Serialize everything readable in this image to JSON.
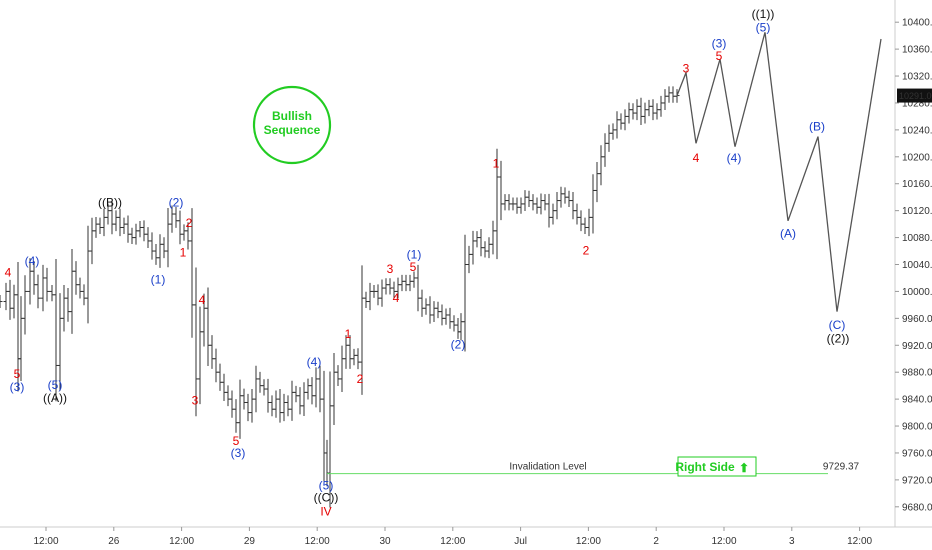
{
  "chart_data": {
    "type": "line",
    "title": "",
    "xlabel": "",
    "ylabel": "",
    "ylim": [
      9650,
      10430
    ],
    "y_ticks": [
      9680,
      9720,
      9760,
      9800,
      9840,
      9880,
      9920,
      9960,
      10000,
      10040,
      10080,
      10120,
      10160,
      10200,
      10240,
      10280,
      10320,
      10360,
      10400
    ],
    "x_ticks": [
      "12:00",
      "26",
      "12:00",
      "29",
      "12:00",
      "30",
      "12:00",
      "Jul",
      "12:00",
      "2",
      "12:00",
      "3",
      "12:00"
    ],
    "price_series": {
      "name": "price",
      "points": [
        [
          0,
          9985
        ],
        [
          6,
          10000
        ],
        [
          10,
          9975
        ],
        [
          14,
          9995
        ],
        [
          18,
          9900
        ],
        [
          21,
          9960
        ],
        [
          25,
          10000
        ],
        [
          30,
          10030
        ],
        [
          34,
          10010
        ],
        [
          38,
          9990
        ],
        [
          43,
          10020
        ],
        [
          47,
          10000
        ],
        [
          52,
          9995
        ],
        [
          56,
          9890
        ],
        [
          60,
          9960
        ],
        [
          64,
          9990
        ],
        [
          68,
          9970
        ],
        [
          72,
          10030
        ],
        [
          76,
          10010
        ],
        [
          80,
          10000
        ],
        [
          84,
          9990
        ],
        [
          88,
          10060
        ],
        [
          92,
          10090
        ],
        [
          96,
          10100
        ],
        [
          100,
          10095
        ],
        [
          104,
          10110
        ],
        [
          108,
          10120
        ],
        [
          112,
          10100
        ],
        [
          116,
          10110
        ],
        [
          120,
          10095
        ],
        [
          124,
          10100
        ],
        [
          128,
          10085
        ],
        [
          132,
          10080
        ],
        [
          136,
          10090
        ],
        [
          140,
          10095
        ],
        [
          144,
          10085
        ],
        [
          148,
          10075
        ],
        [
          152,
          10060
        ],
        [
          156,
          10050
        ],
        [
          160,
          10070
        ],
        [
          164,
          10060
        ],
        [
          168,
          10100
        ],
        [
          172,
          10115
        ],
        [
          176,
          10105
        ],
        [
          180,
          10085
        ],
        [
          184,
          10090
        ],
        [
          188,
          10075
        ],
        [
          192,
          9980
        ],
        [
          196,
          9870
        ],
        [
          200,
          9940
        ],
        [
          204,
          9975
        ],
        [
          208,
          9920
        ],
        [
          212,
          9900
        ],
        [
          216,
          9880
        ],
        [
          220,
          9865
        ],
        [
          224,
          9850
        ],
        [
          228,
          9840
        ],
        [
          232,
          9825
        ],
        [
          236,
          9805
        ],
        [
          240,
          9845
        ],
        [
          244,
          9835
        ],
        [
          248,
          9820
        ],
        [
          252,
          9840
        ],
        [
          256,
          9870
        ],
        [
          260,
          9860
        ],
        [
          264,
          9855
        ],
        [
          268,
          9835
        ],
        [
          272,
          9825
        ],
        [
          276,
          9840
        ],
        [
          280,
          9820
        ],
        [
          284,
          9835
        ],
        [
          288,
          9825
        ],
        [
          292,
          9850
        ],
        [
          296,
          9845
        ],
        [
          300,
          9830
        ],
        [
          304,
          9850
        ],
        [
          308,
          9860
        ],
        [
          312,
          9845
        ],
        [
          316,
          9870
        ],
        [
          320,
          9840
        ],
        [
          324,
          9760
        ],
        [
          327,
          9730
        ],
        [
          330,
          9830
        ],
        [
          334,
          9880
        ],
        [
          338,
          9870
        ],
        [
          342,
          9900
        ],
        [
          346,
          9920
        ],
        [
          350,
          9900
        ],
        [
          354,
          9905
        ],
        [
          358,
          9895
        ],
        [
          362,
          9990
        ],
        [
          366,
          9985
        ],
        [
          370,
          10000
        ],
        [
          374,
          10000
        ],
        [
          378,
          9990
        ],
        [
          382,
          10005
        ],
        [
          386,
          10010
        ],
        [
          390,
          10005
        ],
        [
          394,
          10000
        ],
        [
          398,
          10010
        ],
        [
          402,
          10015
        ],
        [
          406,
          10010
        ],
        [
          410,
          10015
        ],
        [
          414,
          10020
        ],
        [
          418,
          9990
        ],
        [
          422,
          9975
        ],
        [
          426,
          9980
        ],
        [
          430,
          9965
        ],
        [
          434,
          9975
        ],
        [
          438,
          9970
        ],
        [
          442,
          9960
        ],
        [
          446,
          9965
        ],
        [
          450,
          9955
        ],
        [
          454,
          9950
        ],
        [
          458,
          9940
        ],
        [
          461,
          9955
        ],
        [
          465,
          10040
        ],
        [
          469,
          10055
        ],
        [
          473,
          10075
        ],
        [
          477,
          10080
        ],
        [
          481,
          10065
        ],
        [
          485,
          10060
        ],
        [
          489,
          10070
        ],
        [
          493,
          10090
        ],
        [
          497,
          10170
        ],
        [
          501,
          10130
        ],
        [
          505,
          10135
        ],
        [
          509,
          10130
        ],
        [
          513,
          10130
        ],
        [
          517,
          10125
        ],
        [
          521,
          10130
        ],
        [
          525,
          10140
        ],
        [
          529,
          10135
        ],
        [
          533,
          10130
        ],
        [
          537,
          10125
        ],
        [
          541,
          10135
        ],
        [
          545,
          10130
        ],
        [
          549,
          10110
        ],
        [
          553,
          10120
        ],
        [
          557,
          10135
        ],
        [
          561,
          10145
        ],
        [
          565,
          10140
        ],
        [
          569,
          10135
        ],
        [
          573,
          10120
        ],
        [
          577,
          10110
        ],
        [
          581,
          10100
        ],
        [
          585,
          10095
        ],
        [
          589,
          10110
        ],
        [
          593,
          10150
        ],
        [
          597,
          10175
        ],
        [
          601,
          10200
        ],
        [
          605,
          10220
        ],
        [
          609,
          10235
        ],
        [
          613,
          10240
        ],
        [
          617,
          10255
        ],
        [
          621,
          10250
        ],
        [
          625,
          10260
        ],
        [
          629,
          10270
        ],
        [
          633,
          10265
        ],
        [
          637,
          10275
        ],
        [
          641,
          10260
        ],
        [
          645,
          10270
        ],
        [
          649,
          10275
        ],
        [
          653,
          10265
        ],
        [
          657,
          10270
        ],
        [
          661,
          10280
        ],
        [
          665,
          10290
        ],
        [
          669,
          10295
        ],
        [
          673,
          10290
        ],
        [
          677,
          10291
        ]
      ]
    },
    "projection_series": {
      "name": "projection",
      "points": [
        [
          677,
          10291
        ],
        [
          686,
          10325
        ],
        [
          696,
          10220
        ],
        [
          720,
          10345
        ],
        [
          735,
          10215
        ],
        [
          765,
          10385
        ],
        [
          788,
          10105
        ],
        [
          818,
          10230
        ],
        [
          837,
          9970
        ],
        [
          881,
          10375
        ]
      ]
    },
    "current_price": "10291.00",
    "invalidation": {
      "label": "Invalidation Level",
      "value_text": "9729.37",
      "value": 9729.37,
      "x_start": 327,
      "x_end": 828
    },
    "wave_labels": [
      {
        "text": "4",
        "x": 8,
        "y": 10028,
        "color": "#e60000",
        "bold": false
      },
      {
        "text": "5",
        "x": 17,
        "y": 9877,
        "color": "#e60000",
        "bold": false
      },
      {
        "text": "(3)",
        "x": 17,
        "y": 9858,
        "color": "#1a3fc9",
        "bold": false
      },
      {
        "text": "(4)",
        "x": 32,
        "y": 10045,
        "color": "#1a3fc9",
        "bold": false
      },
      {
        "text": "(5)",
        "x": 55,
        "y": 9861,
        "color": "#1a3fc9",
        "bold": false
      },
      {
        "text": "((A))",
        "x": 55,
        "y": 9842,
        "color": "#111111",
        "bold": false
      },
      {
        "text": "((B))",
        "x": 110,
        "y": 10132,
        "color": "#111111",
        "bold": false
      },
      {
        "text": "(2)",
        "x": 176,
        "y": 10132,
        "color": "#1a3fc9",
        "bold": false
      },
      {
        "text": "2",
        "x": 189,
        "y": 10102,
        "color": "#e60000",
        "bold": false
      },
      {
        "text": "1",
        "x": 183,
        "y": 10058,
        "color": "#e60000",
        "bold": false
      },
      {
        "text": "(1)",
        "x": 158,
        "y": 10018,
        "color": "#1a3fc9",
        "bold": false
      },
      {
        "text": "4",
        "x": 202,
        "y": 9987,
        "color": "#e60000",
        "bold": false
      },
      {
        "text": "3",
        "x": 195,
        "y": 9838,
        "color": "#e60000",
        "bold": false
      },
      {
        "text": "5",
        "x": 236,
        "y": 9778,
        "color": "#e60000",
        "bold": false
      },
      {
        "text": "(3)",
        "x": 238,
        "y": 9760,
        "color": "#1a3fc9",
        "bold": false
      },
      {
        "text": "(4)",
        "x": 314,
        "y": 9895,
        "color": "#1a3fc9",
        "bold": false
      },
      {
        "text": "(5)",
        "x": 326,
        "y": 9712,
        "color": "#1a3fc9",
        "bold": false
      },
      {
        "text": "((C))",
        "x": 326,
        "y": 9694,
        "color": "#111111",
        "bold": false
      },
      {
        "text": "IV",
        "x": 326,
        "y": 9673,
        "color": "#e60000",
        "bold": false
      },
      {
        "text": "1",
        "x": 348,
        "y": 9937,
        "color": "#e60000",
        "bold": false
      },
      {
        "text": "2",
        "x": 360,
        "y": 9870,
        "color": "#e60000",
        "bold": false
      },
      {
        "text": "3",
        "x": 390,
        "y": 10033,
        "color": "#e60000",
        "bold": false
      },
      {
        "text": "4",
        "x": 396,
        "y": 9990,
        "color": "#e60000",
        "bold": false
      },
      {
        "text": "5",
        "x": 413,
        "y": 10036,
        "color": "#e60000",
        "bold": false
      },
      {
        "text": "(1)",
        "x": 414,
        "y": 10055,
        "color": "#1a3fc9",
        "bold": false
      },
      {
        "text": "(2)",
        "x": 458,
        "y": 9921,
        "color": "#1a3fc9",
        "bold": false
      },
      {
        "text": "1",
        "x": 496,
        "y": 10190,
        "color": "#e60000",
        "bold": false
      },
      {
        "text": "2",
        "x": 586,
        "y": 10061,
        "color": "#e60000",
        "bold": false
      },
      {
        "text": "3",
        "x": 686,
        "y": 10331,
        "color": "#e60000",
        "bold": false
      },
      {
        "text": "4",
        "x": 696,
        "y": 10198,
        "color": "#e60000",
        "bold": false
      },
      {
        "text": "5",
        "x": 719,
        "y": 10350,
        "color": "#e60000",
        "bold": false
      },
      {
        "text": "(3)",
        "x": 719,
        "y": 10368,
        "color": "#1a3fc9",
        "bold": false
      },
      {
        "text": "(4)",
        "x": 734,
        "y": 10198,
        "color": "#1a3fc9",
        "bold": false
      },
      {
        "text": "(5)",
        "x": 763,
        "y": 10392,
        "color": "#1a3fc9",
        "bold": false
      },
      {
        "text": "((1))",
        "x": 763,
        "y": 10412,
        "color": "#111111",
        "bold": false
      },
      {
        "text": "(A)",
        "x": 788,
        "y": 10086,
        "color": "#1a3fc9",
        "bold": false
      },
      {
        "text": "(B)",
        "x": 817,
        "y": 10245,
        "color": "#1a3fc9",
        "bold": false
      },
      {
        "text": "(C)",
        "x": 837,
        "y": 9950,
        "color": "#1a3fc9",
        "bold": false
      },
      {
        "text": "((2))",
        "x": 838,
        "y": 9930,
        "color": "#111111",
        "bold": false
      }
    ],
    "bullish_badge": {
      "line1": "Bullish",
      "line2": "Sequence",
      "color": "#22cc22"
    },
    "right_side_badge": {
      "label": "Right Side",
      "arrow": "⬆",
      "color": "#22cc22"
    },
    "colors": {
      "bars": "#333333",
      "projection": "#555555",
      "invalidation": "#66dd66",
      "grid": "#ffffff"
    }
  }
}
